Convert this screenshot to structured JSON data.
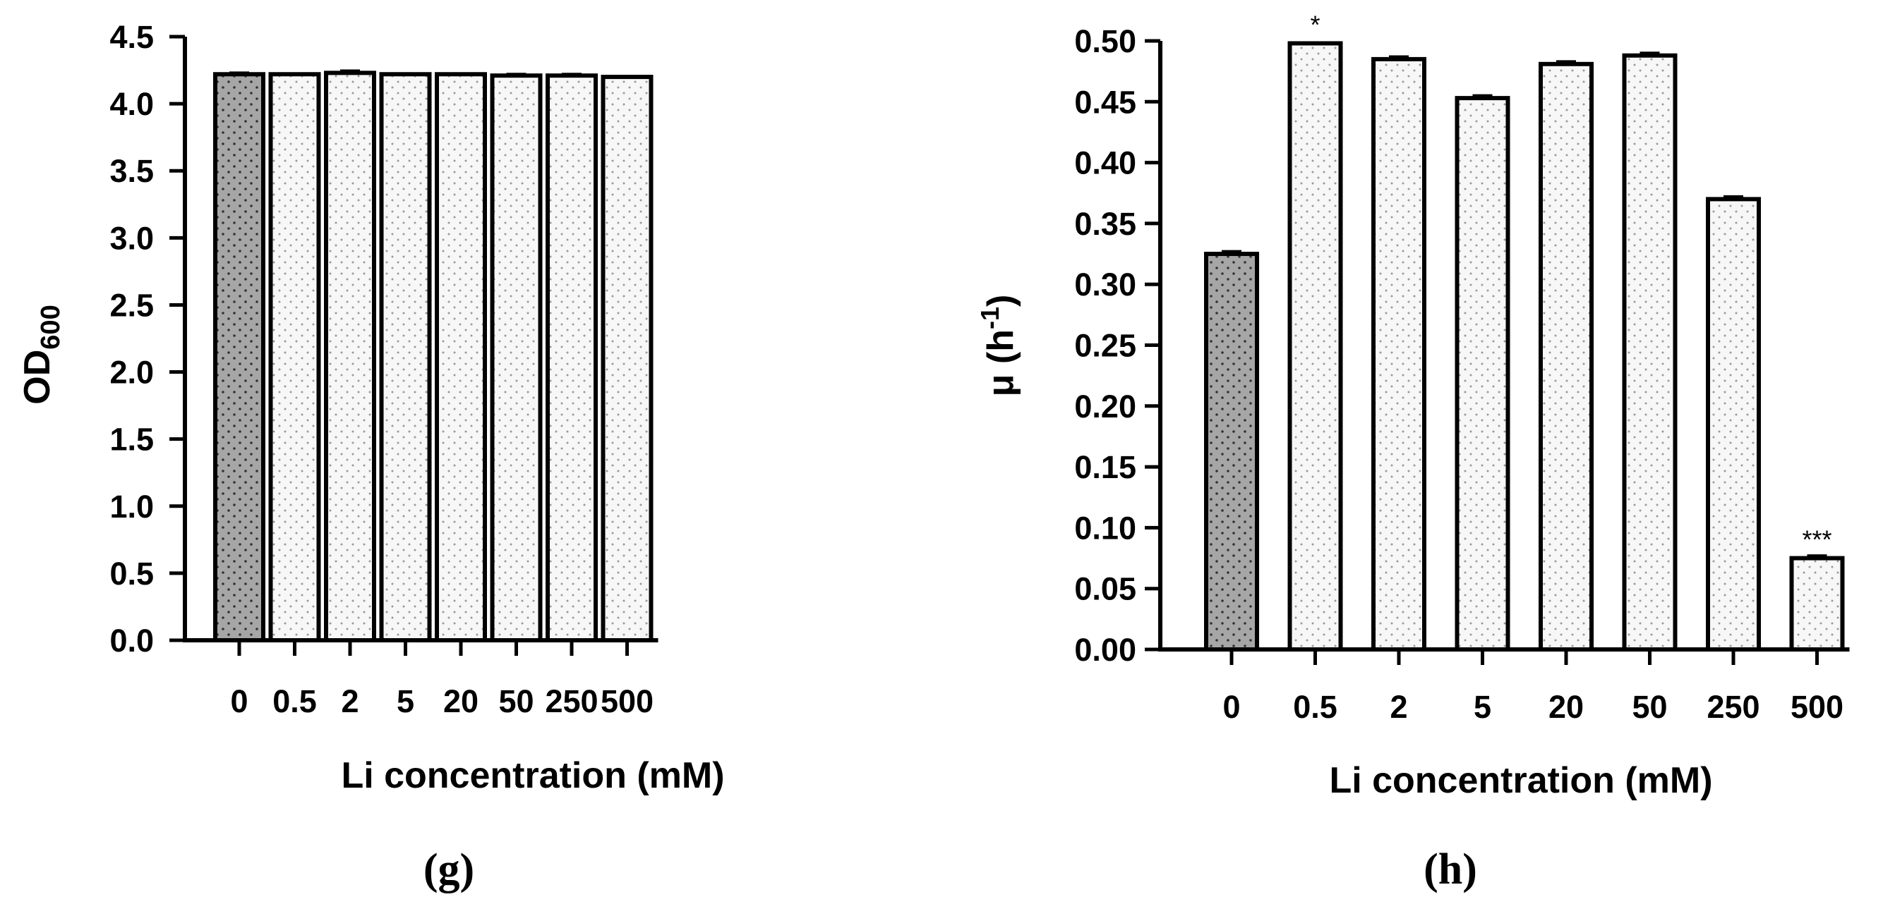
{
  "chart_data": [
    {
      "type": "bar",
      "panel_label": "(g)",
      "categories": [
        "0",
        "0.5",
        "2",
        "5",
        "20",
        "50",
        "250",
        "500"
      ],
      "values": [
        4.22,
        4.22,
        4.23,
        4.22,
        4.22,
        4.21,
        4.21,
        4.2
      ],
      "errors": [
        0.01,
        0.0,
        0.015,
        0.0,
        0.0,
        0.01,
        0.01,
        0.0
      ],
      "annotations": [
        "",
        "",
        "",
        "",
        "",
        "",
        "",
        ""
      ],
      "xlabel": "Li concentration (mM)",
      "ylabel": "OD",
      "ylabel_sub": "600",
      "ylabel_sup": "",
      "ylabel_tail": "",
      "ylim": [
        0,
        4.5
      ],
      "yticks": [
        "0.0",
        "0.5",
        "1.0",
        "1.5",
        "2.0",
        "2.5",
        "3.0",
        "3.5",
        "4.0",
        "4.5"
      ],
      "colors": {
        "control": "#a6a6a6",
        "treatment": "#f7f7f7",
        "outline": "#000000"
      }
    },
    {
      "type": "bar",
      "panel_label": "(h)",
      "categories": [
        "0",
        "0.5",
        "2",
        "5",
        "20",
        "50",
        "250",
        "500"
      ],
      "values": [
        0.325,
        0.498,
        0.485,
        0.453,
        0.481,
        0.488,
        0.37,
        0.075
      ],
      "errors": [
        0.002,
        0.0,
        0.002,
        0.002,
        0.002,
        0.002,
        0.002,
        0.002
      ],
      "annotations": [
        "",
        "*",
        "",
        "",
        "",
        "",
        "",
        "***"
      ],
      "xlabel": "Li concentration (mM)",
      "ylabel": "μ (h",
      "ylabel_sub": "",
      "ylabel_sup": "-1",
      "ylabel_tail": ")",
      "ylim": [
        0,
        0.5
      ],
      "yticks": [
        "0.00",
        "0.05",
        "0.10",
        "0.15",
        "0.20",
        "0.25",
        "0.30",
        "0.35",
        "0.40",
        "0.45",
        "0.50"
      ],
      "colors": {
        "control": "#a6a6a6",
        "treatment": "#f7f7f7",
        "outline": "#000000"
      }
    }
  ]
}
